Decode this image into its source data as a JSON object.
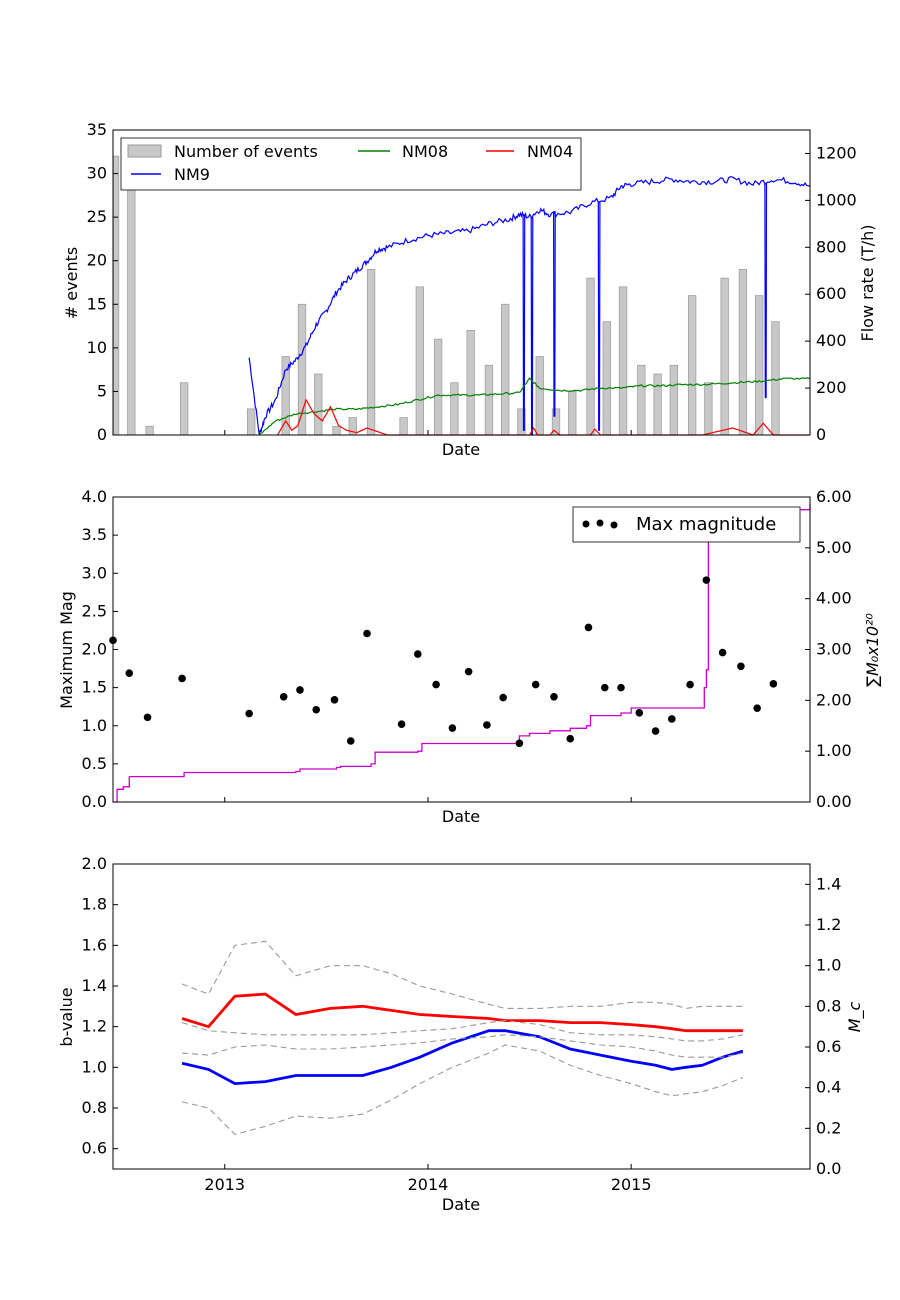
{
  "chart_data": [
    {
      "type": "bar",
      "xlabel": "Date",
      "ylabel": "# events",
      "y2label": "Flow rate (T/h)",
      "xlim": [
        2012.45,
        2015.88
      ],
      "ylim": [
        0,
        35
      ],
      "y2lim": [
        0,
        1300
      ],
      "yticks": [
        "0",
        "5",
        "10",
        "15",
        "20",
        "25",
        "30",
        "35"
      ],
      "y2ticks": [
        "0",
        "200",
        "400",
        "600",
        "800",
        "1000",
        "1200"
      ],
      "legend": {
        "position": "top-left",
        "items": [
          {
            "label": "Number of events",
            "color": "#c8c8c8",
            "kind": "bar"
          },
          {
            "label": "NM08",
            "color": "#008000",
            "kind": "line"
          },
          {
            "label": "NM04",
            "color": "#ff0000",
            "kind": "line"
          },
          {
            "label": "NM9",
            "color": "#0000ff",
            "kind": "line"
          }
        ]
      },
      "bars": {
        "name": "Number of events",
        "color": "#c8c8c8",
        "width_years": 0.037,
        "x": [
          2012.46,
          2012.54,
          2012.63,
          2012.8,
          2013.13,
          2013.3,
          2013.38,
          2013.46,
          2013.55,
          2013.63,
          2013.72,
          2013.88,
          2013.96,
          2014.05,
          2014.13,
          2014.21,
          2014.3,
          2014.38,
          2014.46,
          2014.55,
          2014.63,
          2014.71,
          2014.8,
          2014.88,
          2014.96,
          2015.05,
          2015.13,
          2015.21,
          2015.3,
          2015.38,
          2015.46,
          2015.55,
          2015.63,
          2015.71
        ],
        "values": [
          32,
          29,
          1,
          6,
          3,
          9,
          15,
          7,
          1,
          2,
          19,
          2,
          17,
          11,
          6,
          12,
          8,
          15,
          3,
          9,
          3,
          5,
          18,
          13,
          17,
          8,
          7,
          8,
          16,
          6,
          18,
          19,
          16,
          13
        ]
      },
      "flow_series": [
        {
          "name": "NM9",
          "color": "#0000ff",
          "x": [
            2013.12,
            2013.17,
            2013.2,
            2013.25,
            2013.3,
            2013.35,
            2013.4,
            2013.45,
            2013.5,
            2013.55,
            2013.6,
            2013.65,
            2013.7,
            2013.75,
            2013.8,
            2013.9,
            2014.0,
            2014.1,
            2014.2,
            2014.3,
            2014.4,
            2014.45,
            2014.5,
            2014.55,
            2014.6,
            2014.7,
            2014.8,
            2014.9,
            2014.95,
            2015.0,
            2015.1,
            2015.2,
            2015.3,
            2015.4,
            2015.5,
            2015.6,
            2015.7,
            2015.8,
            2015.88
          ],
          "values": [
            330,
            0,
            80,
            150,
            280,
            320,
            380,
            470,
            530,
            610,
            660,
            700,
            740,
            790,
            800,
            830,
            850,
            860,
            870,
            900,
            920,
            940,
            930,
            960,
            940,
            950,
            990,
            1010,
            1060,
            1070,
            1080,
            1090,
            1080,
            1080,
            1090,
            1070,
            1090,
            1080,
            1060
          ],
          "dips": [
            [
              2014.47,
              20
            ],
            [
              2014.51,
              0
            ],
            [
              2014.62,
              80
            ],
            [
              2014.84,
              20
            ],
            [
              2015.66,
              160
            ]
          ]
        },
        {
          "name": "NM08",
          "color": "#008000",
          "x": [
            2013.17,
            2013.25,
            2013.35,
            2013.45,
            2013.55,
            2013.65,
            2013.75,
            2013.85,
            2013.95,
            2014.05,
            2014.15,
            2014.25,
            2014.35,
            2014.45,
            2014.5,
            2014.55,
            2014.65,
            2014.75,
            2014.85,
            2014.95,
            2015.05,
            2015.15,
            2015.25,
            2015.35,
            2015.45,
            2015.55,
            2015.65,
            2015.75,
            2015.88
          ],
          "values": [
            0,
            60,
            90,
            100,
            110,
            110,
            120,
            130,
            150,
            170,
            170,
            170,
            175,
            180,
            240,
            200,
            190,
            190,
            200,
            200,
            210,
            210,
            215,
            215,
            220,
            225,
            230,
            240,
            240
          ]
        },
        {
          "name": "NM04",
          "color": "#ff0000",
          "x": [
            2013.26,
            2013.3,
            2013.33,
            2013.36,
            2013.4,
            2013.44,
            2013.48,
            2013.52,
            2013.56,
            2013.6,
            2013.65,
            2013.7,
            2013.8,
            2014.0,
            2014.4,
            2014.5,
            2014.52,
            2014.54,
            2014.6,
            2014.62,
            2014.65,
            2014.8,
            2014.82,
            2014.85,
            2015.0,
            2015.35,
            2015.5,
            2015.6,
            2015.65,
            2015.7,
            2015.88
          ],
          "values": [
            0,
            60,
            20,
            40,
            150,
            90,
            60,
            120,
            40,
            20,
            10,
            30,
            0,
            0,
            0,
            0,
            30,
            0,
            0,
            20,
            0,
            0,
            25,
            0,
            0,
            0,
            30,
            0,
            50,
            0,
            0
          ]
        }
      ]
    },
    {
      "type": "scatter",
      "xlabel": "Date",
      "ylabel": "Maximum Mag",
      "y2label": "∑M₀x10²⁰",
      "xlim": [
        2012.45,
        2015.88
      ],
      "ylim": [
        0,
        4.0
      ],
      "y2lim": [
        0,
        6.0
      ],
      "yticks": [
        "0.0",
        "0.5",
        "1.0",
        "1.5",
        "2.0",
        "2.5",
        "3.0",
        "3.5",
        "4.0"
      ],
      "y2ticks": [
        "0.00",
        "1.00",
        "2.00",
        "3.00",
        "4.00",
        "5.00",
        "6.00"
      ],
      "legend": {
        "position": "top-right",
        "items": [
          {
            "label": "Max magnitude",
            "color": "#000000",
            "kind": "point"
          }
        ]
      },
      "points": {
        "name": "Max magnitude",
        "x": [
          2012.45,
          2012.53,
          2012.62,
          2012.79,
          2013.12,
          2013.29,
          2013.37,
          2013.45,
          2013.54,
          2013.62,
          2013.7,
          2013.87,
          2013.95,
          2014.04,
          2014.12,
          2014.2,
          2014.29,
          2014.37,
          2014.45,
          2014.53,
          2014.62,
          2014.7,
          2014.79,
          2014.87,
          2014.95,
          2015.04,
          2015.12,
          2015.2,
          2015.29,
          2015.37,
          2015.45,
          2015.54,
          2015.62,
          2015.7
        ],
        "values": [
          2.12,
          1.69,
          1.11,
          1.62,
          1.16,
          1.38,
          1.47,
          1.21,
          1.34,
          0.8,
          2.21,
          1.02,
          1.94,
          1.54,
          0.97,
          1.71,
          1.01,
          1.37,
          0.77,
          1.54,
          1.38,
          0.83,
          2.29,
          1.5,
          1.5,
          1.17,
          0.93,
          1.09,
          1.54,
          2.91,
          1.96,
          1.78,
          1.23,
          1.55
        ]
      },
      "cumulative": {
        "color": "#cc00cc",
        "x": [
          2012.45,
          2012.47,
          2012.5,
          2012.53,
          2012.79,
          2012.8,
          2013.35,
          2013.37,
          2013.55,
          2013.57,
          2013.72,
          2013.74,
          2013.95,
          2013.97,
          2014.45,
          2014.5,
          2014.6,
          2014.7,
          2014.78,
          2014.8,
          2014.95,
          2015.0,
          2015.36,
          2015.37,
          2015.38,
          2015.4,
          2015.6,
          2015.7,
          2015.88
        ],
        "values": [
          0,
          0.25,
          0.3,
          0.5,
          0.5,
          0.58,
          0.6,
          0.65,
          0.68,
          0.7,
          0.75,
          0.98,
          1.0,
          1.15,
          1.3,
          1.35,
          1.4,
          1.45,
          1.5,
          1.7,
          1.75,
          1.85,
          2.25,
          2.6,
          5.35,
          5.45,
          5.65,
          5.75,
          5.85
        ]
      }
    },
    {
      "type": "line",
      "xlabel": "Date",
      "ylabel": "b-value",
      "y2label": "M_c",
      "xlim": [
        2012.45,
        2015.88
      ],
      "xticks": [
        {
          "label": "2013",
          "x": 2013.0
        },
        {
          "label": "2014",
          "x": 2014.0
        },
        {
          "label": "2015",
          "x": 2015.0
        }
      ],
      "ylim": [
        0.5,
        2.0
      ],
      "y2lim": [
        0.0,
        1.5
      ],
      "yticks": [
        "0.6",
        "0.8",
        "1.0",
        "1.2",
        "1.4",
        "1.6",
        "1.8",
        "2.0"
      ],
      "y2ticks": [
        "0.0",
        "0.2",
        "0.4",
        "0.6",
        "0.8",
        "1.0",
        "1.2",
        "1.4"
      ],
      "x": [
        2012.79,
        2012.92,
        2013.05,
        2013.2,
        2013.35,
        2013.52,
        2013.68,
        2013.82,
        2013.96,
        2014.12,
        2014.3,
        2014.38,
        2014.55,
        2014.7,
        2014.85,
        2015.0,
        2015.12,
        2015.2,
        2015.27,
        2015.35,
        2015.45,
        2015.55
      ],
      "series": [
        {
          "name": "b-value",
          "axis": "left",
          "color": "#0000ff",
          "values": [
            1.02,
            0.99,
            0.92,
            0.93,
            0.96,
            0.96,
            0.96,
            1.0,
            1.05,
            1.12,
            1.18,
            1.18,
            1.15,
            1.09,
            1.06,
            1.03,
            1.01,
            0.99,
            1.0,
            1.01,
            1.05,
            1.08
          ]
        },
        {
          "name": "b-upper",
          "axis": "left",
          "color": "#999999",
          "dashed": true,
          "values": [
            1.41,
            1.36,
            1.6,
            1.62,
            1.45,
            1.5,
            1.5,
            1.46,
            1.4,
            1.36,
            1.31,
            1.29,
            1.29,
            1.3,
            1.3,
            1.32,
            1.32,
            1.31,
            1.29,
            1.3,
            1.3,
            1.3
          ]
        },
        {
          "name": "b-lower",
          "axis": "left",
          "color": "#999999",
          "dashed": true,
          "values": [
            0.83,
            0.8,
            0.67,
            0.71,
            0.76,
            0.75,
            0.77,
            0.84,
            0.92,
            1.0,
            1.07,
            1.11,
            1.08,
            1.01,
            0.96,
            0.92,
            0.88,
            0.86,
            0.87,
            0.88,
            0.91,
            0.95
          ]
        },
        {
          "name": "Mc",
          "axis": "right",
          "color": "#ff0000",
          "values": [
            0.74,
            0.7,
            0.85,
            0.86,
            0.76,
            0.79,
            0.8,
            0.78,
            0.76,
            0.75,
            0.74,
            0.73,
            0.73,
            0.72,
            0.72,
            0.71,
            0.7,
            0.69,
            0.68,
            0.68,
            0.68,
            0.68
          ]
        },
        {
          "name": "Mc-upper",
          "axis": "right",
          "color": "#999999",
          "dashed": true,
          "values": [
            0.72,
            0.68,
            0.67,
            0.66,
            0.66,
            0.66,
            0.66,
            0.67,
            0.68,
            0.69,
            0.72,
            0.73,
            0.71,
            0.67,
            0.66,
            0.66,
            0.65,
            0.64,
            0.63,
            0.63,
            0.64,
            0.66
          ]
        },
        {
          "name": "Mc-lower",
          "axis": "right",
          "color": "#999999",
          "dashed": true,
          "values": [
            0.57,
            0.56,
            0.6,
            0.61,
            0.59,
            0.59,
            0.6,
            0.61,
            0.62,
            0.64,
            0.65,
            0.66,
            0.65,
            0.63,
            0.61,
            0.6,
            0.58,
            0.56,
            0.55,
            0.55,
            0.55,
            0.57
          ]
        }
      ]
    }
  ]
}
